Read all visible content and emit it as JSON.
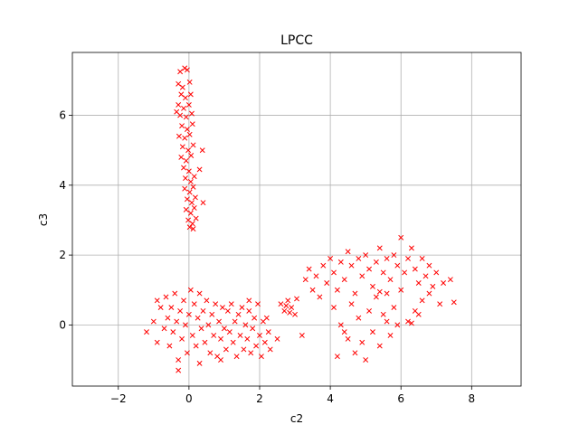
{
  "chart_data": {
    "type": "scatter",
    "title": "LPCC",
    "xlabel": "c2",
    "ylabel": "c3",
    "xlim": [
      -3.3,
      9.4
    ],
    "ylim": [
      -1.75,
      7.8
    ],
    "xticks": [
      -2,
      0,
      2,
      4,
      6,
      8
    ],
    "yticks": [
      0,
      2,
      4,
      6
    ],
    "xtick_labels": [
      "−2",
      "0",
      "2",
      "4",
      "6",
      "8"
    ],
    "ytick_labels": [
      "0",
      "2",
      "4",
      "6"
    ],
    "grid": true,
    "marker": "x",
    "color": "#ff0000",
    "series": [
      {
        "points": [
          [
            -0.25,
            7.25
          ],
          [
            -0.12,
            7.35
          ],
          [
            -0.05,
            7.3
          ],
          [
            -0.3,
            6.9
          ],
          [
            -0.18,
            6.8
          ],
          [
            0.02,
            6.95
          ],
          [
            -0.22,
            6.6
          ],
          [
            -0.1,
            6.5
          ],
          [
            0.05,
            6.6
          ],
          [
            -0.3,
            6.3
          ],
          [
            -0.15,
            6.2
          ],
          [
            0.0,
            6.3
          ],
          [
            -0.25,
            6.0
          ],
          [
            -0.08,
            5.95
          ],
          [
            0.08,
            6.05
          ],
          [
            -0.2,
            5.7
          ],
          [
            -0.05,
            5.6
          ],
          [
            0.1,
            5.75
          ],
          [
            -0.28,
            5.4
          ],
          [
            -0.12,
            5.35
          ],
          [
            0.02,
            5.45
          ],
          [
            -0.18,
            5.1
          ],
          [
            -0.02,
            5.0
          ],
          [
            0.12,
            5.15
          ],
          [
            0.38,
            5.0
          ],
          [
            -0.22,
            4.8
          ],
          [
            -0.08,
            4.7
          ],
          [
            0.06,
            4.85
          ],
          [
            -0.15,
            4.5
          ],
          [
            0.0,
            4.4
          ],
          [
            0.3,
            4.45
          ],
          [
            -0.1,
            4.2
          ],
          [
            0.05,
            4.1
          ],
          [
            0.15,
            4.25
          ],
          [
            -0.12,
            3.9
          ],
          [
            0.02,
            3.8
          ],
          [
            0.12,
            3.95
          ],
          [
            -0.05,
            3.6
          ],
          [
            0.08,
            3.5
          ],
          [
            0.18,
            3.65
          ],
          [
            -0.08,
            3.3
          ],
          [
            0.05,
            3.2
          ],
          [
            0.15,
            3.35
          ],
          [
            -0.02,
            3.0
          ],
          [
            0.1,
            2.9
          ],
          [
            0.2,
            3.05
          ],
          [
            0.02,
            2.8
          ],
          [
            0.12,
            2.75
          ],
          [
            0.4,
            3.5
          ],
          [
            -0.35,
            6.1
          ],
          [
            -1.2,
            -0.2
          ],
          [
            -1.0,
            0.1
          ],
          [
            -0.9,
            -0.5
          ],
          [
            -0.8,
            0.5
          ],
          [
            -0.7,
            -0.1
          ],
          [
            -0.65,
            0.8
          ],
          [
            -0.6,
            0.2
          ],
          [
            -0.55,
            -0.6
          ],
          [
            -0.5,
            0.5
          ],
          [
            -0.45,
            -0.2
          ],
          [
            -0.4,
            0.9
          ],
          [
            -0.35,
            0.1
          ],
          [
            -0.3,
            -1.0
          ],
          [
            -0.25,
            0.4
          ],
          [
            -0.2,
            -0.4
          ],
          [
            -0.15,
            0.7
          ],
          [
            -0.1,
            0.0
          ],
          [
            -0.05,
            -0.8
          ],
          [
            0.0,
            0.3
          ],
          [
            0.05,
            1.0
          ],
          [
            0.1,
            -0.3
          ],
          [
            0.15,
            0.6
          ],
          [
            0.2,
            -0.6
          ],
          [
            0.25,
            0.2
          ],
          [
            0.3,
            0.9
          ],
          [
            0.35,
            -0.1
          ],
          [
            0.4,
            0.4
          ],
          [
            0.45,
            -0.5
          ],
          [
            0.5,
            0.7
          ],
          [
            0.55,
            0.0
          ],
          [
            0.6,
            -0.8
          ],
          [
            0.65,
            0.3
          ],
          [
            0.7,
            -0.3
          ],
          [
            0.75,
            0.6
          ],
          [
            0.8,
            -0.9
          ],
          [
            0.85,
            0.1
          ],
          [
            0.9,
            -0.4
          ],
          [
            0.95,
            0.5
          ],
          [
            1.0,
            -0.1
          ],
          [
            1.05,
            -0.7
          ],
          [
            1.1,
            0.4
          ],
          [
            1.15,
            -0.2
          ],
          [
            1.2,
            0.6
          ],
          [
            1.25,
            -0.5
          ],
          [
            1.3,
            0.1
          ],
          [
            1.35,
            -0.9
          ],
          [
            1.4,
            0.3
          ],
          [
            1.45,
            -0.3
          ],
          [
            1.5,
            0.5
          ],
          [
            1.55,
            -0.7
          ],
          [
            1.6,
            0.0
          ],
          [
            1.65,
            -0.4
          ],
          [
            1.7,
            0.4
          ],
          [
            1.75,
            -0.8
          ],
          [
            1.8,
            -0.1
          ],
          [
            1.85,
            0.2
          ],
          [
            1.9,
            -0.6
          ],
          [
            1.95,
            0.6
          ],
          [
            2.0,
            -0.3
          ],
          [
            2.05,
            -0.9
          ],
          [
            2.1,
            0.1
          ],
          [
            2.15,
            -0.5
          ],
          [
            2.2,
            0.2
          ],
          [
            2.25,
            -0.2
          ],
          [
            2.3,
            -0.7
          ],
          [
            -0.3,
            -1.3
          ],
          [
            0.3,
            -1.1
          ],
          [
            0.9,
            -1.0
          ],
          [
            1.7,
            0.7
          ],
          [
            -0.9,
            0.7
          ],
          [
            2.6,
            0.6
          ],
          [
            2.7,
            0.4
          ],
          [
            2.8,
            0.7
          ],
          [
            2.9,
            0.5
          ],
          [
            3.0,
            0.3
          ],
          [
            2.75,
            0.55
          ],
          [
            3.05,
            0.75
          ],
          [
            2.85,
            0.35
          ],
          [
            3.2,
            -0.3
          ],
          [
            2.5,
            -0.4
          ],
          [
            3.3,
            1.3
          ],
          [
            3.5,
            1.0
          ],
          [
            3.4,
            1.6
          ],
          [
            3.6,
            1.4
          ],
          [
            3.7,
            0.8
          ],
          [
            3.8,
            1.7
          ],
          [
            3.9,
            1.2
          ],
          [
            4.0,
            1.9
          ],
          [
            4.1,
            1.5
          ],
          [
            4.2,
            1.0
          ],
          [
            4.3,
            1.8
          ],
          [
            4.4,
            1.3
          ],
          [
            4.5,
            2.1
          ],
          [
            4.6,
            1.7
          ],
          [
            4.7,
            0.9
          ],
          [
            4.8,
            1.9
          ],
          [
            4.9,
            1.4
          ],
          [
            5.0,
            2.0
          ],
          [
            5.1,
            1.6
          ],
          [
            5.2,
            1.1
          ],
          [
            5.3,
            1.8
          ],
          [
            5.4,
            2.2
          ],
          [
            5.5,
            1.5
          ],
          [
            5.6,
            1.9
          ],
          [
            5.7,
            1.3
          ],
          [
            5.8,
            2.0
          ],
          [
            5.9,
            1.7
          ],
          [
            6.0,
            2.5
          ],
          [
            6.1,
            1.5
          ],
          [
            6.2,
            1.9
          ],
          [
            6.3,
            2.2
          ],
          [
            6.4,
            1.6
          ],
          [
            6.5,
            1.2
          ],
          [
            6.6,
            1.9
          ],
          [
            6.7,
            1.4
          ],
          [
            6.8,
            1.7
          ],
          [
            6.9,
            1.1
          ],
          [
            7.0,
            1.5
          ],
          [
            7.2,
            1.2
          ],
          [
            7.4,
            1.3
          ],
          [
            4.1,
            0.5
          ],
          [
            4.3,
            0.0
          ],
          [
            4.5,
            -0.4
          ],
          [
            4.6,
            0.6
          ],
          [
            4.7,
            -0.8
          ],
          [
            4.8,
            0.2
          ],
          [
            4.9,
            -0.5
          ],
          [
            5.0,
            -1.0
          ],
          [
            5.1,
            0.4
          ],
          [
            5.2,
            -0.2
          ],
          [
            5.3,
            0.8
          ],
          [
            5.4,
            -0.6
          ],
          [
            5.5,
            0.3
          ],
          [
            5.6,
            0.9
          ],
          [
            5.7,
            -0.3
          ],
          [
            5.8,
            0.5
          ],
          [
            5.9,
            0.0
          ],
          [
            6.0,
            1.0
          ],
          [
            6.2,
            0.1
          ],
          [
            6.4,
            0.4
          ],
          [
            6.6,
            0.7
          ],
          [
            6.8,
            0.9
          ],
          [
            7.1,
            0.6
          ],
          [
            7.5,
            0.65
          ],
          [
            4.2,
            -0.9
          ],
          [
            4.4,
            -0.2
          ],
          [
            5.4,
            0.95
          ],
          [
            5.6,
            0.1
          ],
          [
            6.3,
            0.05
          ],
          [
            6.5,
            0.3
          ]
        ]
      }
    ]
  }
}
